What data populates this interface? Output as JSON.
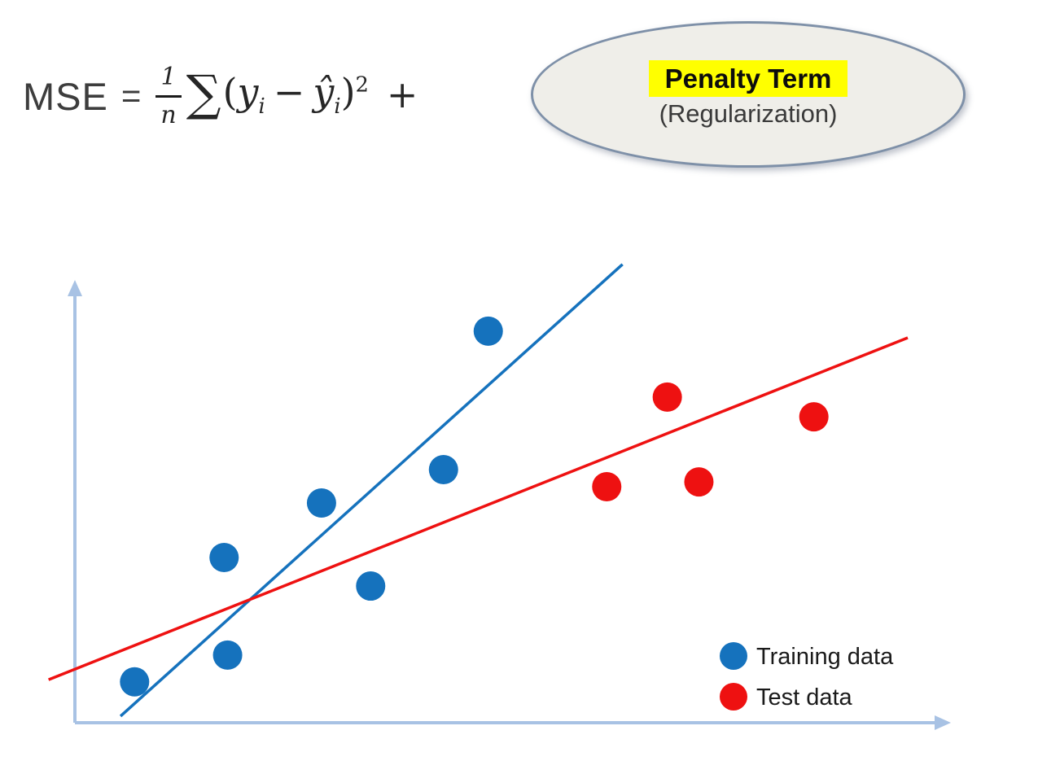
{
  "formula": {
    "lhs": "MSE",
    "equals": "=",
    "fraction": {
      "numerator": "1",
      "denominator": "n"
    },
    "sigma": "∑",
    "open_paren": "(",
    "y_term": "y",
    "y_sub": "i",
    "minus": "−",
    "yhat_term": "ŷ",
    "yhat_sub": "i",
    "close_paren": ")",
    "exponent": "2",
    "plus": "+"
  },
  "penalty_bubble": {
    "title": "Penalty Term",
    "subtitle": "(Regularization)",
    "highlight_color": "#ffff00",
    "fill_color": "#efeee9",
    "border_color": "#7e90a8"
  },
  "chart_data": {
    "type": "scatter",
    "title": "",
    "xlabel": "",
    "ylabel": "",
    "xlim": [
      0,
      10
    ],
    "ylim": [
      0,
      10
    ],
    "grid": false,
    "axis_color": "#a8c2e4",
    "legend_position": "inside bottom-right",
    "series": [
      {
        "name": "Training data",
        "color": "#1572bd",
        "points": [
          [
            4.71,
            8.91
          ],
          [
            4.2,
            5.76
          ],
          [
            2.81,
            5.0
          ],
          [
            1.7,
            3.76
          ],
          [
            3.37,
            3.11
          ],
          [
            1.74,
            1.54
          ],
          [
            0.68,
            0.93
          ]
        ]
      },
      {
        "name": "Test data",
        "color": "#ee1111",
        "points": [
          [
            6.75,
            7.41
          ],
          [
            8.42,
            6.96
          ],
          [
            6.06,
            5.37
          ],
          [
            7.11,
            5.48
          ]
        ]
      }
    ],
    "lines": [
      {
        "name": "Training fit line",
        "color": "#1572bd",
        "from": [
          0.52,
          0.15
        ],
        "to": [
          6.24,
          10.43
        ]
      },
      {
        "name": "Test fit line",
        "color": "#ee1111",
        "from": [
          -0.3,
          0.98
        ],
        "to": [
          9.49,
          8.76
        ]
      }
    ],
    "legend": [
      {
        "label": "Training data",
        "color": "#1572bd"
      },
      {
        "label": "Test data",
        "color": "#ee1111"
      }
    ]
  }
}
